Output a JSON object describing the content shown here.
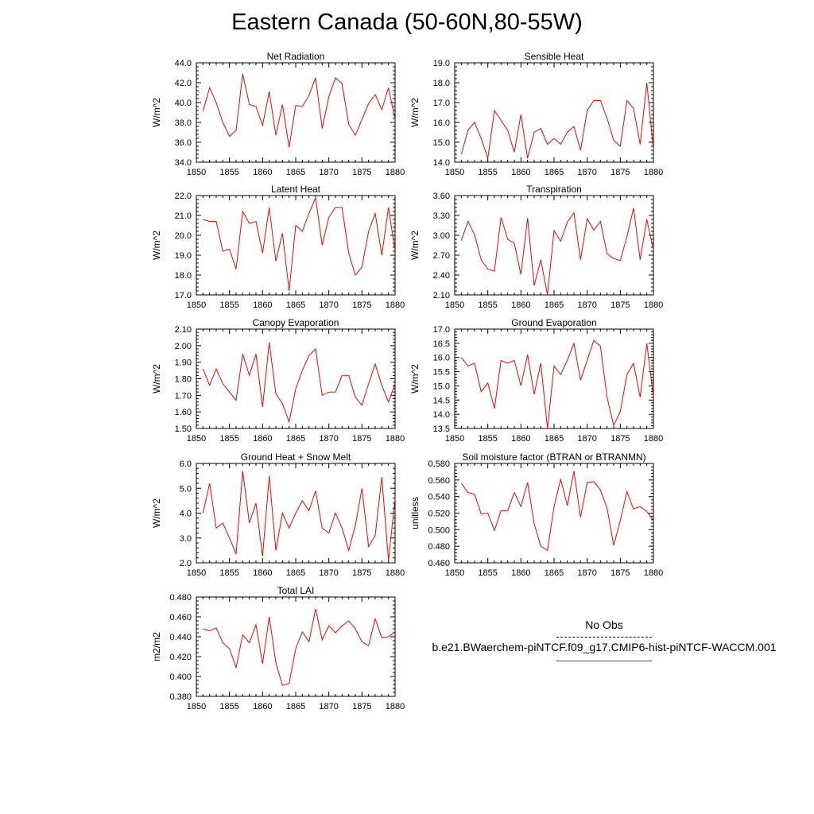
{
  "page": {
    "title": "Eastern Canada (50-60N,80-55W)"
  },
  "legend": {
    "items": [
      {
        "label": "No Obs",
        "color": "#000000",
        "style": "dashed"
      },
      {
        "label": "b.e21.BWaerchem-piNTCF.f09_g17.CMIP6-hist-piNTCF-WACCM.001",
        "color": "#ff0000",
        "style": "solid"
      }
    ]
  },
  "chart_data": [
    {
      "type": "line",
      "title": "Net Radiation",
      "ylabel": "W/m^2",
      "xlim": [
        1850,
        1880
      ],
      "xticks": [
        1850,
        1855,
        1860,
        1865,
        1870,
        1875,
        1880
      ],
      "ylim": [
        34.0,
        44.0
      ],
      "yticks": [
        "34.0",
        "36.0",
        "38.0",
        "40.0",
        "42.0",
        "44.0"
      ],
      "series": [
        {
          "color": "#ff0000",
          "x": [
            1851,
            1852,
            1853,
            1854,
            1855,
            1856,
            1857,
            1858,
            1859,
            1860,
            1861,
            1862,
            1863,
            1864,
            1865,
            1866,
            1867,
            1868,
            1869,
            1870,
            1871,
            1872,
            1873,
            1874,
            1875,
            1876,
            1877,
            1878,
            1879,
            1880
          ],
          "values": [
            39.1,
            41.5,
            40.0,
            38.0,
            36.6,
            37.2,
            42.9,
            39.8,
            39.6,
            37.7,
            41.1,
            36.7,
            39.8,
            35.5,
            39.7,
            39.6,
            40.7,
            42.5,
            37.4,
            40.6,
            42.5,
            41.9,
            37.8,
            36.7,
            38.3,
            39.9,
            40.8,
            39.3,
            41.5,
            38.3
          ]
        }
      ]
    },
    {
      "type": "line",
      "title": "Sensible Heat",
      "ylabel": "W/m^2",
      "xlim": [
        1850,
        1880
      ],
      "xticks": [
        1850,
        1855,
        1860,
        1865,
        1870,
        1875,
        1880
      ],
      "ylim": [
        14.0,
        19.0
      ],
      "yticks": [
        "14.0",
        "15.0",
        "16.0",
        "17.0",
        "18.0",
        "19.0"
      ],
      "series": [
        {
          "color": "#ff0000",
          "x": [
            1851,
            1852,
            1853,
            1854,
            1855,
            1856,
            1857,
            1858,
            1859,
            1860,
            1861,
            1862,
            1863,
            1864,
            1865,
            1866,
            1867,
            1868,
            1869,
            1870,
            1871,
            1872,
            1873,
            1874,
            1875,
            1876,
            1877,
            1878,
            1879,
            1880
          ],
          "values": [
            14.4,
            15.6,
            16.0,
            15.2,
            14.2,
            16.6,
            16.1,
            15.6,
            14.5,
            16.4,
            14.2,
            15.5,
            15.7,
            14.9,
            15.2,
            14.9,
            15.5,
            15.8,
            14.6,
            16.6,
            17.1,
            17.1,
            16.2,
            15.1,
            14.8,
            17.1,
            16.7,
            14.9,
            18.0,
            14.6
          ]
        }
      ]
    },
    {
      "type": "line",
      "title": "Latent Heat",
      "ylabel": "W/m^2",
      "xlim": [
        1850,
        1880
      ],
      "xticks": [
        1850,
        1855,
        1860,
        1865,
        1870,
        1875,
        1880
      ],
      "ylim": [
        17.0,
        22.0
      ],
      "yticks": [
        "17.0",
        "18.0",
        "19.0",
        "20.0",
        "21.0",
        "22.0"
      ],
      "series": [
        {
          "color": "#ff0000",
          "x": [
            1851,
            1852,
            1853,
            1854,
            1855,
            1856,
            1857,
            1858,
            1859,
            1860,
            1861,
            1862,
            1863,
            1864,
            1865,
            1866,
            1867,
            1868,
            1869,
            1870,
            1871,
            1872,
            1873,
            1874,
            1875,
            1876,
            1877,
            1878,
            1879,
            1880
          ],
          "values": [
            20.8,
            20.7,
            20.7,
            19.2,
            19.3,
            18.3,
            21.2,
            20.6,
            20.7,
            19.1,
            21.4,
            18.7,
            20.1,
            17.2,
            20.5,
            20.2,
            21.1,
            21.9,
            19.5,
            20.9,
            21.4,
            21.4,
            19.1,
            18.0,
            18.4,
            20.2,
            21.1,
            19.0,
            21.4,
            19.2
          ]
        }
      ]
    },
    {
      "type": "line",
      "title": "Transpiration",
      "ylabel": "W/m^2",
      "xlim": [
        1850,
        1880
      ],
      "xticks": [
        1850,
        1855,
        1860,
        1865,
        1870,
        1875,
        1880
      ],
      "ylim": [
        2.1,
        3.6
      ],
      "yticks": [
        "2.10",
        "2.40",
        "2.70",
        "3.00",
        "3.30",
        "3.60"
      ],
      "series": [
        {
          "color": "#ff0000",
          "x": [
            1851,
            1852,
            1853,
            1854,
            1855,
            1856,
            1857,
            1858,
            1859,
            1860,
            1861,
            1862,
            1863,
            1864,
            1865,
            1866,
            1867,
            1868,
            1869,
            1870,
            1871,
            1872,
            1873,
            1874,
            1875,
            1876,
            1877,
            1878,
            1879,
            1880
          ],
          "values": [
            2.92,
            3.21,
            3.01,
            2.63,
            2.49,
            2.46,
            3.27,
            2.94,
            2.88,
            2.41,
            3.26,
            2.24,
            2.63,
            2.1,
            3.07,
            2.91,
            3.2,
            3.34,
            2.63,
            3.25,
            3.08,
            3.21,
            2.72,
            2.65,
            2.62,
            2.98,
            3.41,
            2.63,
            3.24,
            2.78
          ]
        }
      ]
    },
    {
      "type": "line",
      "title": "Canopy Evaporation",
      "ylabel": "W/m^2",
      "xlim": [
        1850,
        1880
      ],
      "xticks": [
        1850,
        1855,
        1860,
        1865,
        1870,
        1875,
        1880
      ],
      "ylim": [
        1.5,
        2.1
      ],
      "yticks": [
        "1.50",
        "1.60",
        "1.70",
        "1.80",
        "1.90",
        "2.00",
        "2.10"
      ],
      "series": [
        {
          "color": "#ff0000",
          "x": [
            1851,
            1852,
            1853,
            1854,
            1855,
            1856,
            1857,
            1858,
            1859,
            1860,
            1861,
            1862,
            1863,
            1864,
            1865,
            1866,
            1867,
            1868,
            1869,
            1870,
            1871,
            1872,
            1873,
            1874,
            1875,
            1876,
            1877,
            1878,
            1879,
            1880
          ],
          "values": [
            1.86,
            1.76,
            1.86,
            1.77,
            1.72,
            1.67,
            1.95,
            1.82,
            1.95,
            1.63,
            2.02,
            1.71,
            1.65,
            1.54,
            1.74,
            1.85,
            1.94,
            1.98,
            1.7,
            1.72,
            1.72,
            1.82,
            1.82,
            1.69,
            1.64,
            1.77,
            1.89,
            1.76,
            1.66,
            1.77
          ]
        }
      ]
    },
    {
      "type": "line",
      "title": "Ground Evaporation",
      "ylabel": "W/m^2",
      "xlim": [
        1850,
        1880
      ],
      "xticks": [
        1850,
        1855,
        1860,
        1865,
        1870,
        1875,
        1880
      ],
      "ylim": [
        13.5,
        17.0
      ],
      "yticks": [
        "13.5",
        "14.0",
        "14.5",
        "15.0",
        "15.5",
        "16.0",
        "16.5",
        "17.0"
      ],
      "series": [
        {
          "color": "#ff0000",
          "x": [
            1851,
            1852,
            1853,
            1854,
            1855,
            1856,
            1857,
            1858,
            1859,
            1860,
            1861,
            1862,
            1863,
            1864,
            1865,
            1866,
            1867,
            1868,
            1869,
            1870,
            1871,
            1872,
            1873,
            1874,
            1875,
            1876,
            1877,
            1878,
            1879,
            1880
          ],
          "values": [
            16.0,
            15.7,
            15.8,
            14.8,
            15.1,
            14.2,
            15.9,
            15.8,
            15.9,
            15.0,
            16.1,
            14.7,
            15.8,
            13.5,
            15.7,
            15.4,
            15.9,
            16.5,
            15.2,
            15.9,
            16.6,
            16.4,
            14.6,
            13.6,
            14.1,
            15.4,
            15.8,
            14.6,
            16.5,
            14.6
          ]
        }
      ]
    },
    {
      "type": "line",
      "title": "Ground Heat + Snow Melt",
      "ylabel": "W/m^2",
      "xlim": [
        1850,
        1880
      ],
      "xticks": [
        1850,
        1855,
        1860,
        1865,
        1870,
        1875,
        1880
      ],
      "ylim": [
        2.0,
        6.0
      ],
      "yticks": [
        "2.0",
        "3.0",
        "4.0",
        "5.0",
        "6.0"
      ],
      "series": [
        {
          "color": "#ff0000",
          "x": [
            1851,
            1852,
            1853,
            1854,
            1855,
            1856,
            1857,
            1858,
            1859,
            1860,
            1861,
            1862,
            1863,
            1864,
            1865,
            1866,
            1867,
            1868,
            1869,
            1870,
            1871,
            1872,
            1873,
            1874,
            1875,
            1876,
            1877,
            1878,
            1879,
            1880
          ],
          "values": [
            4.0,
            5.2,
            3.4,
            3.6,
            3.0,
            2.35,
            5.7,
            3.6,
            4.4,
            2.25,
            5.5,
            2.5,
            4.0,
            3.4,
            4.0,
            4.5,
            4.1,
            4.9,
            3.4,
            3.2,
            4.0,
            3.4,
            2.5,
            3.5,
            5.0,
            2.65,
            3.1,
            5.45,
            2.1,
            4.6
          ]
        }
      ]
    },
    {
      "type": "line",
      "title": "Soil moisture factor (BTRAN or BTRANMN)",
      "ylabel": "unitless",
      "xlim": [
        1850,
        1880
      ],
      "xticks": [
        1850,
        1855,
        1860,
        1865,
        1870,
        1875,
        1880
      ],
      "ylim": [
        0.46,
        0.58
      ],
      "yticks": [
        "0.460",
        "0.480",
        "0.500",
        "0.520",
        "0.540",
        "0.560",
        "0.580"
      ],
      "series": [
        {
          "color": "#ff0000",
          "x": [
            1851,
            1852,
            1853,
            1854,
            1855,
            1856,
            1857,
            1858,
            1859,
            1860,
            1861,
            1862,
            1863,
            1864,
            1865,
            1866,
            1867,
            1868,
            1869,
            1870,
            1871,
            1872,
            1873,
            1874,
            1875,
            1876,
            1877,
            1878,
            1879,
            1880
          ],
          "values": [
            0.556,
            0.545,
            0.543,
            0.519,
            0.52,
            0.499,
            0.523,
            0.523,
            0.545,
            0.528,
            0.557,
            0.507,
            0.48,
            0.475,
            0.528,
            0.561,
            0.529,
            0.571,
            0.515,
            0.557,
            0.558,
            0.548,
            0.526,
            0.481,
            0.511,
            0.546,
            0.525,
            0.528,
            0.522,
            0.511
          ]
        }
      ]
    },
    {
      "type": "line",
      "title": "Total LAI",
      "ylabel": "m2/m2",
      "xlim": [
        1850,
        1880
      ],
      "xticks": [
        1850,
        1855,
        1860,
        1865,
        1870,
        1875,
        1880
      ],
      "ylim": [
        0.38,
        0.48
      ],
      "yticks": [
        "0.380",
        "0.400",
        "0.420",
        "0.440",
        "0.460",
        "0.480"
      ],
      "series": [
        {
          "color": "#ff0000",
          "x": [
            1851,
            1852,
            1853,
            1854,
            1855,
            1856,
            1857,
            1858,
            1859,
            1860,
            1861,
            1862,
            1863,
            1864,
            1865,
            1866,
            1867,
            1868,
            1869,
            1870,
            1871,
            1872,
            1873,
            1874,
            1875,
            1876,
            1877,
            1878,
            1879,
            1880
          ],
          "values": [
            0.448,
            0.446,
            0.449,
            0.434,
            0.428,
            0.409,
            0.442,
            0.434,
            0.452,
            0.413,
            0.46,
            0.414,
            0.391,
            0.393,
            0.428,
            0.445,
            0.435,
            0.468,
            0.437,
            0.451,
            0.444,
            0.451,
            0.456,
            0.448,
            0.435,
            0.431,
            0.458,
            0.439,
            0.44,
            0.445
          ]
        }
      ]
    }
  ]
}
